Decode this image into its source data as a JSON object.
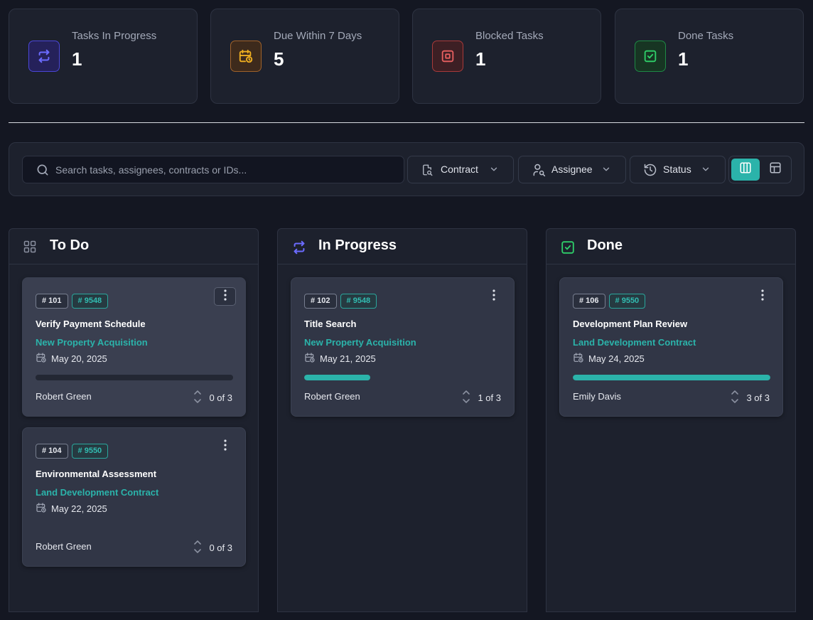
{
  "stats": [
    {
      "label": "Tasks In Progress",
      "value": "1",
      "icon": "loop-arrows-icon",
      "color": "#5b5bf0"
    },
    {
      "label": "Due Within 7 Days",
      "value": "5",
      "icon": "calendar-clock-icon",
      "color": "#f0b020"
    },
    {
      "label": "Blocked Tasks",
      "value": "1",
      "icon": "stop-square-icon",
      "color": "#e05a5a"
    },
    {
      "label": "Done Tasks",
      "value": "1",
      "icon": "check-square-icon",
      "color": "#22c55e"
    }
  ],
  "filters": {
    "search_placeholder": "Search tasks, assignees, contracts or IDs...",
    "contract_label": "Contract",
    "assignee_label": "Assignee",
    "status_label": "Status",
    "view_active": "board"
  },
  "columns": [
    {
      "title": "To Do",
      "icon": "grid-icon",
      "cards": [
        {
          "id": "# 101",
          "contract": "# 9548",
          "title": "Verify Payment Schedule",
          "project": "New Property Acquisition",
          "date": "May 20, 2025",
          "progress": 0.0,
          "assignee": "Robert Green",
          "count": "0 of 3"
        },
        {
          "id": "# 104",
          "contract": "# 9550",
          "title": "Environmental Assessment",
          "project": "Land Development Contract",
          "date": "May 22, 2025",
          "progress": 0.0,
          "assignee": "Robert Green",
          "count": "0 of 3"
        }
      ]
    },
    {
      "title": "In Progress",
      "icon": "loop-arrows-icon",
      "cards": [
        {
          "id": "# 102",
          "contract": "# 9548",
          "title": "Title Search",
          "project": "New Property Acquisition",
          "date": "May 21, 2025",
          "progress": 0.3333,
          "assignee": "Robert Green",
          "count": "1 of 3"
        }
      ]
    },
    {
      "title": "Done",
      "icon": "check-square-icon",
      "cards": [
        {
          "id": "# 106",
          "contract": "# 9550",
          "title": "Development Plan Review",
          "project": "Land Development Contract",
          "date": "May 24, 2025",
          "progress": 1.0,
          "assignee": "Emily Davis",
          "count": "3 of 3"
        }
      ]
    }
  ]
}
